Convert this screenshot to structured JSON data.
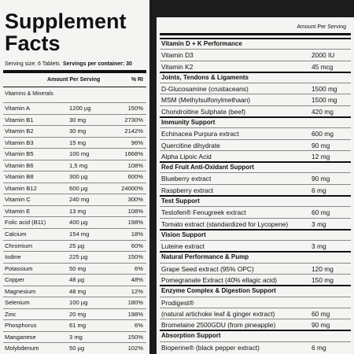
{
  "left": {
    "title_line1": "Supplement",
    "title_line2": "Facts",
    "serving_size": "Serving size: 6 Tablets",
    "servings_per_container": "Servings per container: 30",
    "col_amount": "Amount Per Serving",
    "col_ri": "% RI",
    "section": "Vitamins & Minerals",
    "rows": [
      [
        "Vitamin A",
        "1200 µg",
        "150%"
      ],
      [
        "Vitamin B1",
        "30 mg",
        "2730%"
      ],
      [
        "Vitamin B2",
        "30 mg",
        "2142%"
      ],
      [
        "Vitamin B3",
        "15 mg",
        "96%"
      ],
      [
        "Vitamin B5",
        "100 mg",
        "1668%"
      ],
      [
        "Vitamin B6",
        "1,5 mg",
        "108%"
      ],
      [
        "Vitamin B8",
        "300 µg",
        "600%"
      ],
      [
        "Vitamin B12",
        "600 µg",
        "24000%"
      ],
      [
        "Vitamin C",
        "240 mg",
        "300%"
      ],
      [
        "Vitamin E",
        "13 mg",
        "108%"
      ],
      [
        "Folic acid (B11)",
        "400 µg",
        "198%"
      ],
      [
        "Calcium",
        "154 mg",
        "18%"
      ],
      [
        "Chromium",
        "25 µg",
        "60%"
      ],
      [
        "Iodine",
        "225 µg",
        "150%"
      ],
      [
        "Potassium",
        "50 mg",
        "6%"
      ],
      [
        "Copper",
        "48 µg",
        "48%"
      ],
      [
        "Magnesium",
        "48 mg",
        "12%"
      ],
      [
        "Selenium",
        "100 µg",
        "180%"
      ],
      [
        "Zinc",
        "20 mg",
        "198%"
      ],
      [
        "Phosphorus",
        "61 mg",
        "6%"
      ],
      [
        "Manganese",
        "3 mg",
        "150%"
      ],
      [
        "Molybdenum",
        "50 µg",
        "102%"
      ]
    ]
  },
  "right": {
    "col_amount": "Amount Per Serving",
    "sections": [
      {
        "title": "Vitamin D + K Performance",
        "rows": [
          [
            "Vitamin D3",
            "2000 IU"
          ],
          [
            "Vitamin K2",
            "45 mcg"
          ]
        ]
      },
      {
        "title": "Joints, Tendons & Ligaments",
        "rows": [
          [
            "D-Glucosamine (crustaceans)",
            "1500 mg"
          ],
          [
            "MSM (Methylsulfonylmethaan)",
            "1500 mg"
          ],
          [
            "Chondroitine Sulphate (beef)",
            "420 mg"
          ]
        ]
      },
      {
        "title": "Immunity Support",
        "rows": [
          [
            "Echinacea Purpura extract",
            "600 mg"
          ],
          [
            "Quercitine dihydrate",
            "90 mg"
          ],
          [
            "Alpha Lipoic Acid",
            "12 mg"
          ]
        ]
      },
      {
        "title": "Red Fruit Anti-Oxidant Support",
        "rows": [
          [
            "Blueberry extract",
            "90 mg"
          ],
          [
            "Raspberry extract",
            "6 mg"
          ]
        ]
      },
      {
        "title": "Test Support",
        "rows": [
          [
            "Testofen® Fenugreek extract",
            "60 mg"
          ],
          [
            "Tomato extract (standardized for Lycopene)",
            "3 mg"
          ]
        ]
      },
      {
        "title": "Vision Support",
        "rows": [
          [
            "Luteine extract",
            "3 mg"
          ]
        ]
      },
      {
        "title": "Natural Performance & Pump",
        "rows": [
          [
            "Grape Seed extract (95% OPC)",
            "120 mg"
          ],
          [
            "Pomegranate Extract (40% ellagic acid)",
            "150 mg"
          ]
        ]
      },
      {
        "title": "Enzyme Complex & Digestion Support",
        "rows": [
          [
            "Prodigest®",
            null
          ],
          [
            "(natural artichoke leaf & ginger extract)",
            "60 mg"
          ],
          [
            "Bromelaine 2500GDU (from pineapple)",
            "90 mg"
          ]
        ]
      },
      {
        "title": "Absorption Support",
        "rows": [
          [
            "Bioperine® (black pepper extract)",
            "6 mg"
          ]
        ]
      }
    ]
  }
}
